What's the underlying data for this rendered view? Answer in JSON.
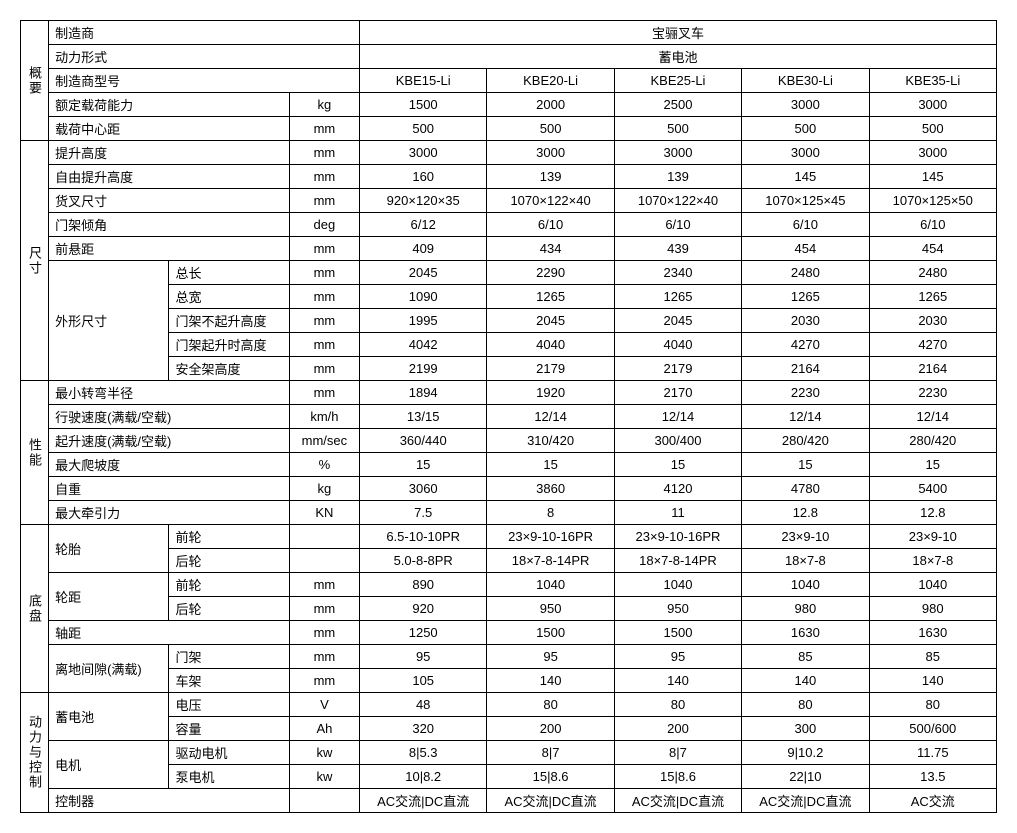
{
  "sections": {
    "overview": "概要",
    "dimensions": "尺寸",
    "performance": "性能",
    "chassis": "底盘",
    "power": "动力与控制"
  },
  "header": {
    "manufacturer_label": "制造商",
    "manufacturer_value": "宝骊叉车",
    "power_type_label": "动力形式",
    "power_type_value": "蓄电池",
    "model_label": "制造商型号",
    "models": [
      "KBE15-Li",
      "KBE20-Li",
      "KBE25-Li",
      "KBE30-Li",
      "KBE35-Li"
    ]
  },
  "rows": [
    {
      "l1": "额定载荷能力",
      "l2": "",
      "u": "kg",
      "v": [
        "1500",
        "2000",
        "2500",
        "3000",
        "3000"
      ]
    },
    {
      "l1": "载荷中心距",
      "l2": "",
      "u": "mm",
      "v": [
        "500",
        "500",
        "500",
        "500",
        "500"
      ]
    },
    {
      "l1": "提升高度",
      "l2": "",
      "u": "mm",
      "v": [
        "3000",
        "3000",
        "3000",
        "3000",
        "3000"
      ]
    },
    {
      "l1": "自由提升高度",
      "l2": "",
      "u": "mm",
      "v": [
        "160",
        "139",
        "139",
        "145",
        "145"
      ]
    },
    {
      "l1": "货叉尺寸",
      "l2": "",
      "u": "mm",
      "v": [
        "920×120×35",
        "1070×122×40",
        "1070×122×40",
        "1070×125×45",
        "1070×125×50"
      ]
    },
    {
      "l1": "门架倾角",
      "l2": "",
      "u": "deg",
      "v": [
        "6/12",
        "6/10",
        "6/10",
        "6/10",
        "6/10"
      ]
    },
    {
      "l1": "前悬距",
      "l2": "",
      "u": "mm",
      "v": [
        "409",
        "434",
        "439",
        "454",
        "454"
      ]
    },
    {
      "l1": "外形尺寸",
      "l2": "总长",
      "u": "mm",
      "v": [
        "2045",
        "2290",
        "2340",
        "2480",
        "2480"
      ]
    },
    {
      "l1": "",
      "l2": "总宽",
      "u": "mm",
      "v": [
        "1090",
        "1265",
        "1265",
        "1265",
        "1265"
      ]
    },
    {
      "l1": "",
      "l2": "门架不起升高度",
      "u": "mm",
      "v": [
        "1995",
        "2045",
        "2045",
        "2030",
        "2030"
      ]
    },
    {
      "l1": "",
      "l2": "门架起升时高度",
      "u": "mm",
      "v": [
        "4042",
        "4040",
        "4040",
        "4270",
        "4270"
      ]
    },
    {
      "l1": "",
      "l2": "安全架高度",
      "u": "mm",
      "v": [
        "2199",
        "2179",
        "2179",
        "2164",
        "2164"
      ]
    },
    {
      "l1": "最小转弯半径",
      "l2": "",
      "u": "mm",
      "v": [
        "1894",
        "1920",
        "2170",
        "2230",
        "2230"
      ]
    },
    {
      "l1": "行驶速度(满载/空载)",
      "l2": "",
      "u": "km/h",
      "v": [
        "13/15",
        "12/14",
        "12/14",
        "12/14",
        "12/14"
      ]
    },
    {
      "l1": "起升速度(满载/空载)",
      "l2": "",
      "u": "mm/sec",
      "v": [
        "360/440",
        "310/420",
        "300/400",
        "280/420",
        "280/420"
      ]
    },
    {
      "l1": "最大爬坡度",
      "l2": "",
      "u": "%",
      "v": [
        "15",
        "15",
        "15",
        "15",
        "15"
      ]
    },
    {
      "l1": "自重",
      "l2": "",
      "u": "kg",
      "v": [
        "3060",
        "3860",
        "4120",
        "4780",
        "5400"
      ]
    },
    {
      "l1": "最大牵引力",
      "l2": "",
      "u": "KN",
      "v": [
        "7.5",
        "8",
        "11",
        "12.8",
        "12.8"
      ]
    },
    {
      "l1": "轮胎",
      "l2": "前轮",
      "u": "",
      "v": [
        "6.5-10-10PR",
        "23×9-10-16PR",
        "23×9-10-16PR",
        "23×9-10",
        "23×9-10"
      ]
    },
    {
      "l1": "",
      "l2": "后轮",
      "u": "",
      "v": [
        "5.0-8-8PR",
        "18×7-8-14PR",
        "18×7-8-14PR",
        "18×7-8",
        "18×7-8"
      ]
    },
    {
      "l1": "轮距",
      "l2": "前轮",
      "u": "mm",
      "v": [
        "890",
        "1040",
        "1040",
        "1040",
        "1040"
      ]
    },
    {
      "l1": "",
      "l2": "后轮",
      "u": "mm",
      "v": [
        "920",
        "950",
        "950",
        "980",
        "980"
      ]
    },
    {
      "l1": "轴距",
      "l2": "",
      "u": "mm",
      "v": [
        "1250",
        "1500",
        "1500",
        "1630",
        "1630"
      ]
    },
    {
      "l1": "离地间隙(满载)",
      "l2": "门架",
      "u": "mm",
      "v": [
        "95",
        "95",
        "95",
        "85",
        "85"
      ]
    },
    {
      "l1": "",
      "l2": "车架",
      "u": "mm",
      "v": [
        "105",
        "140",
        "140",
        "140",
        "140"
      ]
    },
    {
      "l1": "蓄电池",
      "l2": "电压",
      "u": "V",
      "v": [
        "48",
        "80",
        "80",
        "80",
        "80"
      ]
    },
    {
      "l1": "",
      "l2": "容量",
      "u": "Ah",
      "v": [
        "320",
        "200",
        "200",
        "300",
        "500/600"
      ]
    },
    {
      "l1": "电机",
      "l2": "驱动电机",
      "u": "kw",
      "v": [
        "8|5.3",
        "8|7",
        "8|7",
        "9|10.2",
        "11.75"
      ]
    },
    {
      "l1": "",
      "l2": "泵电机",
      "u": "kw",
      "v": [
        "10|8.2",
        "15|8.6",
        "15|8.6",
        "22|10",
        "13.5"
      ]
    },
    {
      "l1": "控制器",
      "l2": "",
      "u": "",
      "v": [
        "AC交流|DC直流",
        "AC交流|DC直流",
        "AC交流|DC直流",
        "AC交流|DC直流",
        "AC交流"
      ]
    }
  ]
}
